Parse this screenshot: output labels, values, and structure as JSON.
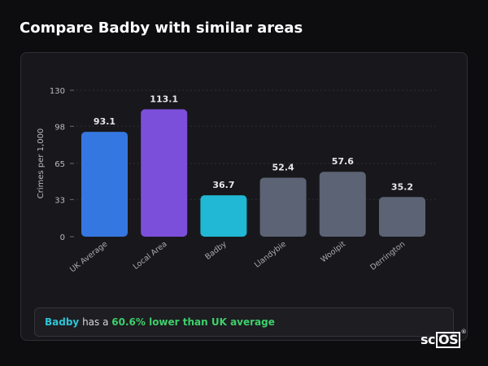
{
  "header": {
    "title": "Compare Badby with similar areas"
  },
  "chart_data": {
    "type": "bar",
    "ylabel": "Crimes per 1,000",
    "xlabel": "",
    "ylim": [
      0,
      130
    ],
    "yticks": [
      0,
      33,
      65,
      98,
      130
    ],
    "grid": true,
    "categories": [
      "UK Average",
      "Local Area",
      "Badby",
      "Llandybie",
      "Woolpit",
      "Derrington"
    ],
    "values": [
      93.1,
      113.1,
      36.7,
      52.4,
      57.6,
      35.2
    ],
    "value_labels": [
      "93.1",
      "113.1",
      "36.7",
      "52.4",
      "57.6",
      "35.2"
    ],
    "colors": [
      "#3577e0",
      "#7c4fdb",
      "#20b8d4",
      "#5b6374",
      "#5b6374",
      "#5b6374"
    ]
  },
  "summary": {
    "place": "Badby",
    "middle": " has a ",
    "stat": "60.6% lower than UK average"
  },
  "logo": {
    "prefix": "sc",
    "boxed": "OS",
    "mark": "®"
  }
}
